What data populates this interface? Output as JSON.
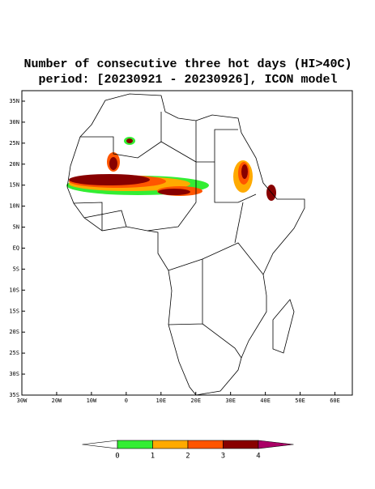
{
  "header": {
    "title": [
      "Number of consecutive three hot days (HI>40C)",
      "period: [20230921 - 20230926], ICON model"
    ]
  },
  "map": {
    "xlim": [
      -30,
      65
    ],
    "ylim": [
      -35,
      37.5
    ],
    "xticks": [
      {
        "value": -30,
        "label": "30W"
      },
      {
        "value": -20,
        "label": "20W"
      },
      {
        "value": -10,
        "label": "10W"
      },
      0,
      {
        "value": 10,
        "label": "10E"
      },
      {
        "value": 20,
        "label": "20E"
      },
      {
        "value": 30,
        "label": "30E"
      },
      {
        "value": 40,
        "label": "40E"
      },
      {
        "value": 50,
        "label": "50E"
      },
      {
        "value": 60,
        "label": "60E"
      }
    ],
    "yticks": [
      {
        "value": 35,
        "label": "35N"
      },
      {
        "value": 30,
        "label": "30N"
      },
      {
        "value": 25,
        "label": "25N"
      },
      {
        "value": 20,
        "label": "20N"
      },
      {
        "value": 15,
        "label": "15N"
      },
      {
        "value": 10,
        "label": "10N"
      },
      {
        "value": 5,
        "label": "5N"
      },
      {
        "value": 0,
        "label": "EQ"
      },
      {
        "value": -5,
        "label": "5S"
      },
      {
        "value": -10,
        "label": "10S"
      },
      {
        "value": -15,
        "label": "15S"
      },
      {
        "value": -20,
        "label": "20S"
      },
      {
        "value": -25,
        "label": "25S"
      },
      {
        "value": -30,
        "label": "30S"
      },
      {
        "value": -35,
        "label": "35S"
      }
    ]
  },
  "colorbar": {
    "levels": [
      0,
      1,
      2,
      3,
      4
    ],
    "colors": [
      "#ffffff",
      "#33ee33",
      "#ffaa00",
      "#ff5500",
      "#880000",
      "#aa0066"
    ]
  }
}
